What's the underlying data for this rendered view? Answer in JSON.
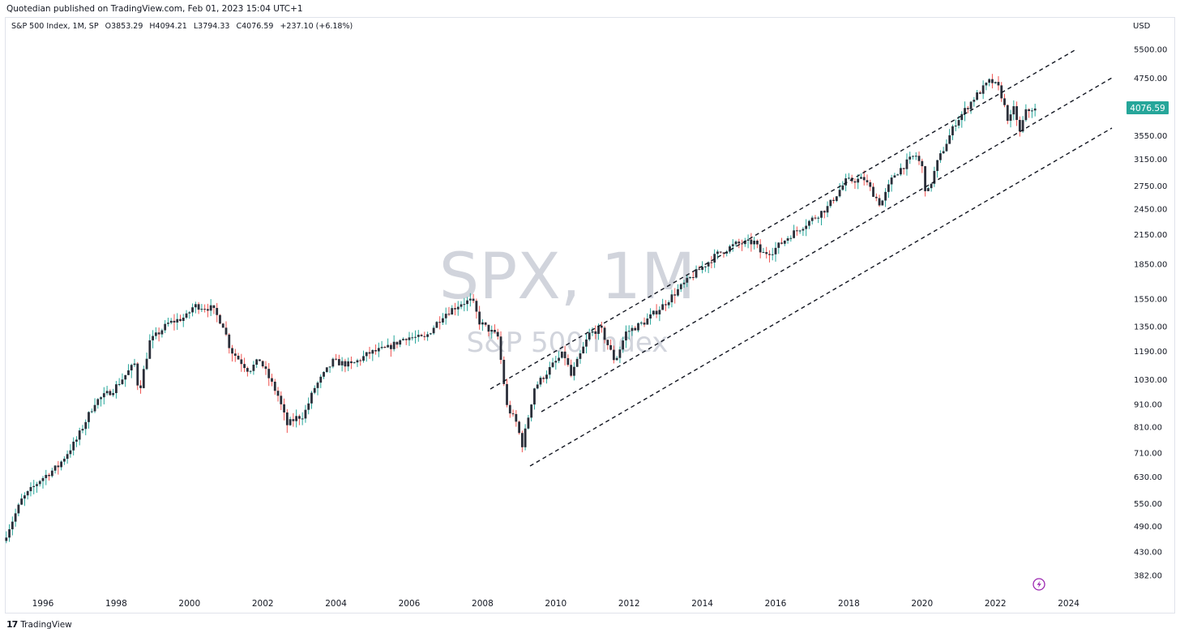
{
  "header": {
    "published": "Quotedian published on TradingView.com, Feb 01, 2023 15:04 UTC+1"
  },
  "legend": {
    "symbol": "S&P 500 Index, 1M, SP",
    "open": "O3853.29",
    "high": "H4094.21",
    "low": "L3794.33",
    "close": "C4076.59",
    "change": "+237.10 (+6.18%)"
  },
  "watermark": {
    "symbol": "SPX, 1M",
    "name": "S&P 500 Index"
  },
  "footer": {
    "brand": "TradingView",
    "logo_icon": "tradingview-logo-icon"
  },
  "colors": {
    "up": "#26a69a",
    "down": "#ef5350",
    "body": "#2a2e39",
    "price_label": "#26a69a",
    "trendline": "#131722",
    "watermark": "#d1d4dc",
    "event_icon": "#9c27b0"
  },
  "chart_data": {
    "type": "candlestick",
    "title": "S&P 500 Index, 1M, SP",
    "y_scale": "log",
    "currency": "USD",
    "ylim": [
      340,
      6000
    ],
    "xlim": [
      1995.0,
      2025.0
    ],
    "y_ticks": [
      "5500.00",
      "4750.00",
      "3550.00",
      "3150.00",
      "2750.00",
      "2450.00",
      "2150.00",
      "1850.00",
      "1550.00",
      "1350.00",
      "1190.00",
      "1030.00",
      "910.00",
      "810.00",
      "710.00",
      "630.00",
      "550.00",
      "490.00",
      "430.00",
      "382.00"
    ],
    "x_ticks": [
      "1996",
      "1998",
      "2000",
      "2002",
      "2004",
      "2006",
      "2008",
      "2010",
      "2012",
      "2014",
      "2016",
      "2018",
      "2020",
      "2022",
      "2024"
    ],
    "last_price": "4076.59",
    "price_path": [
      [
        1995.0,
        455
      ],
      [
        1995.5,
        560
      ],
      [
        1996.0,
        620
      ],
      [
        1996.5,
        665
      ],
      [
        1997.0,
        760
      ],
      [
        1997.5,
        920
      ],
      [
        1998.0,
        980
      ],
      [
        1998.6,
        1120
      ],
      [
        1998.7,
        960
      ],
      [
        1999.0,
        1250
      ],
      [
        1999.5,
        1370
      ],
      [
        2000.0,
        1420
      ],
      [
        2000.2,
        1500
      ],
      [
        2000.7,
        1480
      ],
      [
        2001.0,
        1360
      ],
      [
        2001.2,
        1200
      ],
      [
        2001.7,
        1080
      ],
      [
        2002.0,
        1140
      ],
      [
        2002.5,
        950
      ],
      [
        2002.75,
        820
      ],
      [
        2003.0,
        850
      ],
      [
        2003.2,
        860
      ],
      [
        2003.5,
        990
      ],
      [
        2004.0,
        1130
      ],
      [
        2004.5,
        1110
      ],
      [
        2005.0,
        1180
      ],
      [
        2005.5,
        1210
      ],
      [
        2006.0,
        1280
      ],
      [
        2006.5,
        1270
      ],
      [
        2007.0,
        1430
      ],
      [
        2007.5,
        1520
      ],
      [
        2007.8,
        1540
      ],
      [
        2008.0,
        1380
      ],
      [
        2008.5,
        1280
      ],
      [
        2008.75,
        900
      ],
      [
        2009.0,
        830
      ],
      [
        2009.17,
        740
      ],
      [
        2009.5,
        990
      ],
      [
        2010.0,
        1110
      ],
      [
        2010.3,
        1180
      ],
      [
        2010.5,
        1050
      ],
      [
        2011.0,
        1300
      ],
      [
        2011.3,
        1340
      ],
      [
        2011.7,
        1130
      ],
      [
        2012.0,
        1310
      ],
      [
        2012.5,
        1380
      ],
      [
        2013.0,
        1500
      ],
      [
        2013.5,
        1650
      ],
      [
        2014.0,
        1800
      ],
      [
        2014.5,
        1950
      ],
      [
        2015.0,
        2050
      ],
      [
        2015.5,
        2070
      ],
      [
        2015.7,
        1950
      ],
      [
        2016.0,
        1980
      ],
      [
        2016.5,
        2150
      ],
      [
        2017.0,
        2300
      ],
      [
        2017.5,
        2470
      ],
      [
        2018.0,
        2820
      ],
      [
        2018.5,
        2850
      ],
      [
        2018.95,
        2500
      ],
      [
        2019.3,
        2900
      ],
      [
        2019.9,
        3230
      ],
      [
        2020.1,
        3000
      ],
      [
        2020.2,
        2600
      ],
      [
        2020.5,
        3100
      ],
      [
        2021.0,
        3800
      ],
      [
        2021.5,
        4300
      ],
      [
        2021.95,
        4700
      ],
      [
        2022.2,
        4500
      ],
      [
        2022.45,
        3800
      ],
      [
        2022.6,
        4100
      ],
      [
        2022.75,
        3600
      ],
      [
        2022.9,
        4000
      ],
      [
        2023.08,
        4076
      ]
    ],
    "trendlines": [
      {
        "name": "upper-channel",
        "start": [
          2009.0,
          1000
        ],
        "end": [
          2024.0,
          5600
        ]
      },
      {
        "name": "middle-channel",
        "start": [
          2009.3,
          870
        ],
        "end": [
          2025.0,
          4800
        ]
      },
      {
        "name": "lower-channel",
        "start": [
          2009.2,
          650
        ],
        "end": [
          2025.0,
          3650
        ]
      }
    ],
    "grid": false,
    "legend_position": "top-left"
  }
}
